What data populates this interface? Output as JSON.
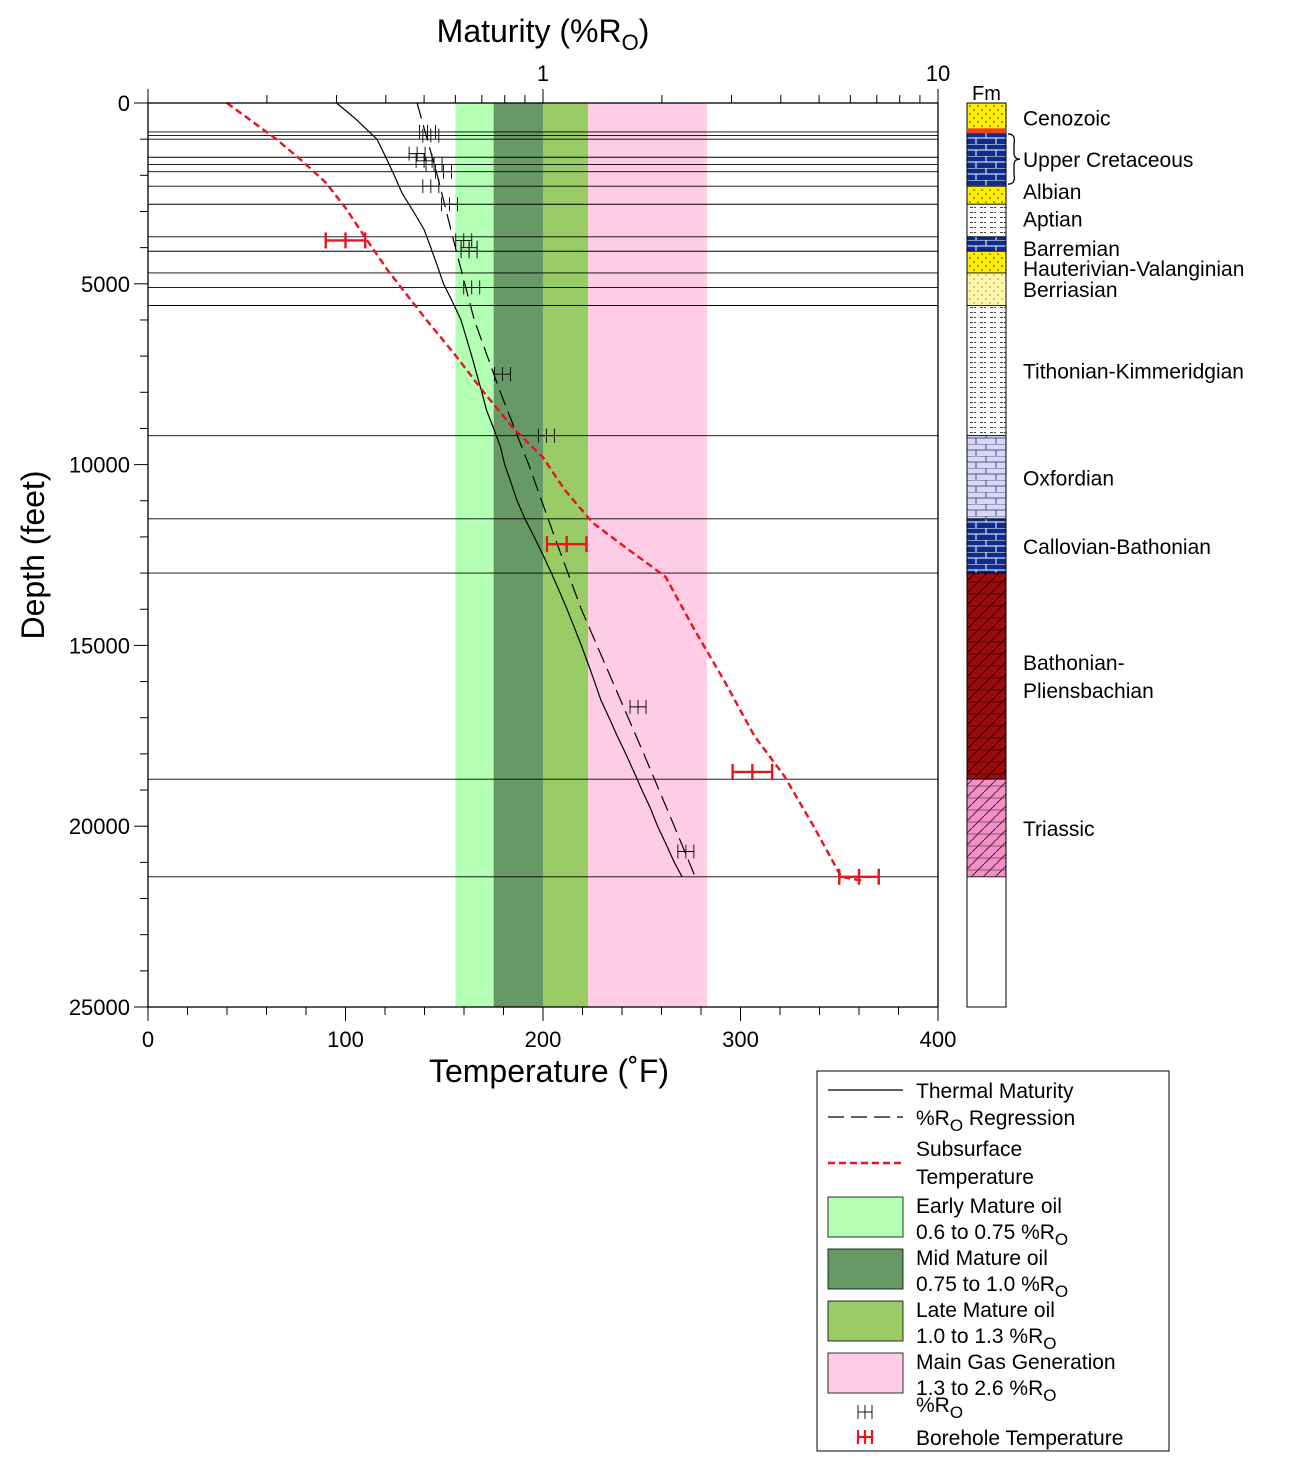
{
  "chart_data": {
    "type": "line",
    "title": "",
    "top_axis": {
      "label_main": "Maturity (%R",
      "label_sub": "O",
      "label_end": ")",
      "scale": "log",
      "range": [
        0.1,
        10
      ],
      "tick_labels": [
        "1",
        "10"
      ]
    },
    "bottom_axis": {
      "label": "Temperature (˚F)",
      "range": [
        0,
        400
      ],
      "tick_labels": [
        "0",
        "100",
        "200",
        "300",
        "400"
      ]
    },
    "y_axis": {
      "label": "Depth (feet)",
      "range": [
        0,
        25000
      ],
      "inverted": true,
      "tick_labels": [
        "0",
        "5000",
        "10000",
        "15000",
        "20000",
        "25000"
      ]
    },
    "grid": false,
    "maturity_zones": [
      {
        "name": "Early Mature oil",
        "range": "0.6 to 0.75 %R",
        "sub": "O",
        "min": 0.6,
        "max": 0.75,
        "color": "#b3ffb3"
      },
      {
        "name": "Mid Mature oil",
        "range": "0.75 to 1.0 %R",
        "sub": "O",
        "min": 0.75,
        "max": 1.0,
        "color": "#669966"
      },
      {
        "name": "Late Mature oil",
        "range": "1.0 to 1.3 %R",
        "sub": "O",
        "min": 1.0,
        "max": 1.3,
        "color": "#99cc66"
      },
      {
        "name": "Main Gas Generation",
        "range": "1.3 to 2.6 %R",
        "sub": "O",
        "min": 1.3,
        "max": 2.6,
        "color": "#ffccE6"
      }
    ],
    "formation_top_depths": [
      800,
      900,
      1000,
      1500,
      1700,
      1900,
      2300,
      2800,
      3700,
      4100,
      4700,
      5100,
      5600,
      9200,
      11500,
      13000,
      18700,
      21400
    ],
    "series": [
      {
        "name": "Thermal Maturity",
        "axis": "maturity",
        "style": "solid",
        "color": "#000000",
        "points": [
          [
            0.3,
            0
          ],
          [
            0.32,
            250
          ],
          [
            0.34,
            500
          ],
          [
            0.38,
            1000
          ],
          [
            0.4,
            1500
          ],
          [
            0.42,
            2000
          ],
          [
            0.44,
            2500
          ],
          [
            0.47,
            3000
          ],
          [
            0.5,
            3500
          ],
          [
            0.52,
            4000
          ],
          [
            0.54,
            4500
          ],
          [
            0.56,
            5000
          ],
          [
            0.59,
            5500
          ],
          [
            0.62,
            6000
          ],
          [
            0.64,
            6500
          ],
          [
            0.66,
            7000
          ],
          [
            0.68,
            7500
          ],
          [
            0.7,
            8000
          ],
          [
            0.72,
            8500
          ],
          [
            0.75,
            9000
          ],
          [
            0.78,
            9500
          ],
          [
            0.8,
            10000
          ],
          [
            0.83,
            10500
          ],
          [
            0.86,
            11000
          ],
          [
            0.9,
            11500
          ],
          [
            0.95,
            12000
          ],
          [
            1.0,
            12500
          ],
          [
            1.05,
            13000
          ],
          [
            1.1,
            13500
          ],
          [
            1.15,
            14000
          ],
          [
            1.2,
            14500
          ],
          [
            1.25,
            15000
          ],
          [
            1.3,
            15500
          ],
          [
            1.35,
            16000
          ],
          [
            1.4,
            16500
          ],
          [
            1.47,
            17000
          ],
          [
            1.54,
            17500
          ],
          [
            1.62,
            18000
          ],
          [
            1.7,
            18500
          ],
          [
            1.78,
            19000
          ],
          [
            1.87,
            19500
          ],
          [
            1.95,
            20000
          ],
          [
            2.05,
            20500
          ],
          [
            2.15,
            21000
          ],
          [
            2.25,
            21400
          ]
        ]
      },
      {
        "name": "%R",
        "sub": "O",
        "name_end": " Regression",
        "axis": "maturity",
        "style": "dashed",
        "color": "#000000",
        "points": [
          [
            0.48,
            0
          ],
          [
            0.54,
            2000
          ],
          [
            0.6,
            4000
          ],
          [
            0.67,
            6000
          ],
          [
            0.78,
            8000
          ],
          [
            0.92,
            10000
          ],
          [
            1.07,
            12000
          ],
          [
            1.25,
            14000
          ],
          [
            1.5,
            16000
          ],
          [
            1.8,
            18000
          ],
          [
            2.15,
            20000
          ],
          [
            2.45,
            21500
          ]
        ]
      },
      {
        "name": "Subsurface",
        "name_line2": "Temperature",
        "axis": "temperature",
        "style": "dashed",
        "color": "#e8141e",
        "points": [
          [
            40,
            0
          ],
          [
            50,
            400
          ],
          [
            65,
            1000
          ],
          [
            78,
            1600
          ],
          [
            90,
            2200
          ],
          [
            100,
            2900
          ],
          [
            111,
            3800
          ],
          [
            121,
            4600
          ],
          [
            131,
            5300
          ],
          [
            141,
            6000
          ],
          [
            156,
            7000
          ],
          [
            170,
            8000
          ],
          [
            185,
            9000
          ],
          [
            200,
            9800
          ],
          [
            211,
            10700
          ],
          [
            225,
            11600
          ],
          [
            242,
            12300
          ],
          [
            262,
            13100
          ],
          [
            276,
            14500
          ],
          [
            292,
            16000
          ],
          [
            307,
            17500
          ],
          [
            322,
            18600
          ],
          [
            337,
            20000
          ],
          [
            351,
            21400
          ],
          [
            361,
            21500
          ]
        ]
      }
    ],
    "ro_samples": {
      "name": "%R",
      "sub": "O",
      "points": [
        [
          0.51,
          800
        ],
        [
          0.52,
          900
        ],
        [
          0.48,
          1400
        ],
        [
          0.5,
          1600
        ],
        [
          0.53,
          1700
        ],
        [
          0.56,
          1900
        ],
        [
          0.52,
          2300
        ],
        [
          0.58,
          2800
        ],
        [
          0.63,
          3800
        ],
        [
          0.65,
          4000
        ],
        [
          0.65,
          4100
        ],
        [
          0.66,
          5100
        ],
        [
          0.79,
          7500
        ],
        [
          1.02,
          9200
        ],
        [
          1.74,
          16700
        ],
        [
          2.3,
          20700
        ]
      ]
    },
    "borehole_temperatures": {
      "name": "Borehole Temperature",
      "points": [
        [
          100,
          3800,
          10
        ],
        [
          212,
          12200,
          10
        ],
        [
          306,
          18500,
          10
        ],
        [
          360,
          21400,
          10
        ]
      ]
    },
    "formations": {
      "header": "Fm",
      "units": [
        {
          "label": "Cenozoic",
          "top": 0,
          "base": 800,
          "pattern": "sand"
        },
        {
          "label": "Upper Cretaceous",
          "top": 800,
          "base": 2300,
          "pattern": "limestone"
        },
        {
          "label": "Albian",
          "top": 2300,
          "base": 2800,
          "pattern": "sand"
        },
        {
          "label": "Aptian",
          "top": 2800,
          "base": 3700,
          "pattern": "shale"
        },
        {
          "label": "Barremian",
          "top": 3700,
          "base": 4100,
          "pattern": "limestone"
        },
        {
          "label": "Hauterivian-Valanginian",
          "top": 4100,
          "base": 4700,
          "pattern": "sand"
        },
        {
          "label": "Berriasian",
          "top": 4700,
          "base": 5600,
          "pattern": "lightsand"
        },
        {
          "label": "Tithonian-Kimmeridgian",
          "top": 5600,
          "base": 9200,
          "pattern": "shale"
        },
        {
          "label": "Oxfordian",
          "top": 9200,
          "base": 11500,
          "pattern": "lightlime"
        },
        {
          "label": "Callovian-Bathonian",
          "top": 11500,
          "base": 13000,
          "pattern": "limestone"
        },
        {
          "label": "Bathonian-",
          "label2": "Pliensbachian",
          "top": 13000,
          "base": 18700,
          "pattern": "redhatch"
        },
        {
          "label": "Triassic",
          "top": 18700,
          "base": 21400,
          "pattern": "pinkhatch"
        }
      ]
    }
  }
}
